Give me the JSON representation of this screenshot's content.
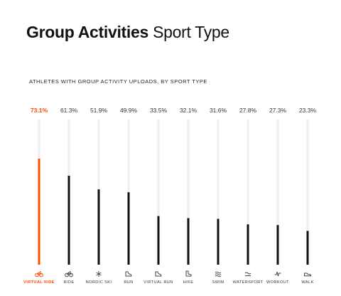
{
  "header": {
    "title_bold": "Group Activities",
    "title_light": "Sport Type",
    "subtitle": "ATHLETES WITH GROUP ACTIVITY UPLOADS, BY SPORT TYPE"
  },
  "colors": {
    "highlight": "#fc4c02",
    "bar": "#111111",
    "track": "#eeeeee",
    "label": "#333333"
  },
  "chart_data": {
    "type": "bar",
    "title": "Group Activities Sport Type",
    "subtitle": "ATHLETES WITH GROUP ACTIVITY UPLOADS, BY SPORT TYPE",
    "categories": [
      "VIRTUAL RIDE",
      "RIDE",
      "NORDIC SKI",
      "RUN",
      "VIRTUAL RUN",
      "HIKE",
      "SWIM",
      "WATERSPORT",
      "WORKOUT",
      "WALK"
    ],
    "icons": [
      "bike-icon",
      "bike-icon",
      "ski-icon",
      "shoe-icon",
      "shoe-icon",
      "boot-icon",
      "swim-icon",
      "wave-icon",
      "pulse-icon",
      "walk-icon"
    ],
    "values": [
      73.1,
      61.3,
      51.9,
      49.9,
      33.5,
      32.1,
      31.6,
      27.8,
      27.3,
      23.3
    ],
    "value_labels": [
      "73.1%",
      "61.3%",
      "51.9%",
      "49.9%",
      "33.5%",
      "32.1%",
      "31.6%",
      "27.8%",
      "27.3%",
      "23.3%"
    ],
    "highlight_index": 0,
    "ylim": [
      0,
      100
    ],
    "unit": "%",
    "grid": false
  }
}
